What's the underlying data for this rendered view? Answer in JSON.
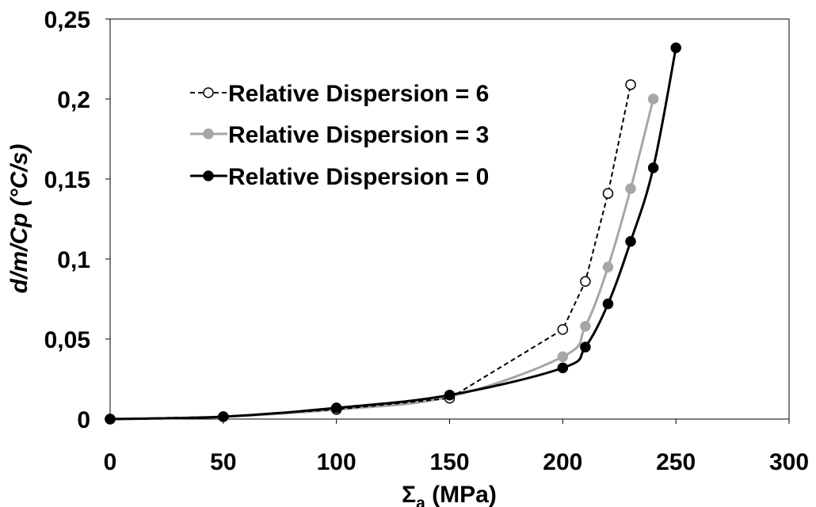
{
  "chart_data": {
    "type": "line",
    "xlabel": "Σ",
    "xlabel_subscript": "a",
    "xlabel_unit": " (MPa)",
    "ylabel": "d/m/Cp (°C/s)",
    "xlim": [
      0,
      300
    ],
    "ylim": [
      0,
      0.25
    ],
    "x_ticks": [
      0,
      50,
      100,
      150,
      200,
      250,
      300
    ],
    "y_ticks": [
      0,
      0.05,
      0.1,
      0.15,
      0.2,
      0.25
    ],
    "x_tick_labels": [
      "0",
      "50",
      "100",
      "150",
      "200",
      "250",
      "300"
    ],
    "y_tick_labels": [
      "0",
      "0,05",
      "0,1",
      "0,15",
      "0,2",
      "0,25"
    ],
    "grid": false,
    "legend_position": "top-left",
    "series": [
      {
        "name": "Relative Dispersion = 6",
        "color": "#000000",
        "line_style": "dashed",
        "marker": "open-circle",
        "x": [
          0,
          50,
          100,
          150,
          200,
          210,
          220,
          230
        ],
        "y": [
          0,
          0.0015,
          0.006,
          0.013,
          0.056,
          0.086,
          0.141,
          0.209
        ]
      },
      {
        "name": "Relative Dispersion = 3",
        "color": "#a6a6a6",
        "line_style": "solid",
        "marker": "filled-circle",
        "x": [
          0,
          50,
          100,
          150,
          200,
          210,
          220,
          230,
          240
        ],
        "y": [
          0,
          0.0015,
          0.006,
          0.014,
          0.039,
          0.058,
          0.095,
          0.144,
          0.2
        ]
      },
      {
        "name": "Relative Dispersion = 0",
        "color": "#000000",
        "line_style": "solid",
        "marker": "filled-circle",
        "x": [
          0,
          50,
          100,
          150,
          200,
          210,
          220,
          230,
          240,
          250
        ],
        "y": [
          0,
          0.0015,
          0.007,
          0.015,
          0.032,
          0.045,
          0.072,
          0.111,
          0.157,
          0.232
        ]
      }
    ]
  }
}
